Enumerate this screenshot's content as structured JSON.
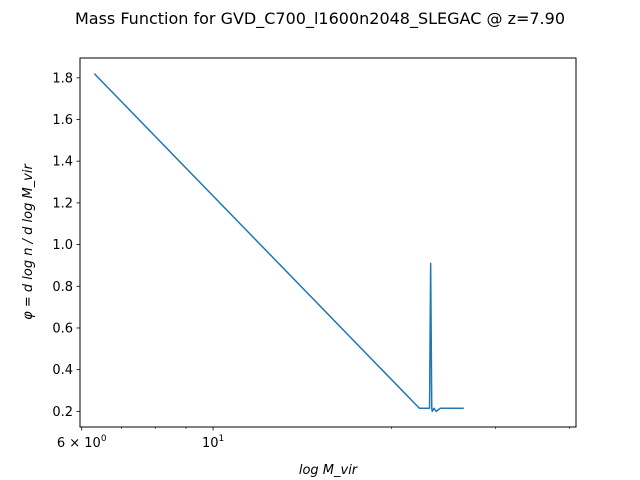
{
  "chart_data": {
    "type": "line",
    "title": "Mass Function for GVD_C700_l1600n2048_SLEGAC @ z=7.90",
    "xlabel": "log M_vir",
    "ylabel": "φ = d log n / d log M_vir",
    "xscale": "log",
    "xlim": [
      5.96,
      41.0
    ],
    "ylim": [
      0.125,
      1.895
    ],
    "xticks": [
      {
        "value": 6,
        "label": "6 × 10^0"
      },
      {
        "value": 10,
        "label": "10^1"
      }
    ],
    "x_minor_ticks": [
      7,
      8,
      9,
      20,
      30,
      40
    ],
    "yticks": [
      0.2,
      0.4,
      0.6,
      0.8,
      1.0,
      1.2,
      1.4,
      1.6,
      1.8
    ],
    "ytick_labels": [
      "0.2",
      "0.4",
      "0.6",
      "0.8",
      "1.0",
      "1.2",
      "1.4",
      "1.6",
      "1.8"
    ],
    "grid": false,
    "series": [
      {
        "color": "#1f77b4",
        "x": [
          6.3,
          22.3,
          23.2,
          23.3,
          23.4,
          23.45,
          23.6,
          23.8,
          24.2,
          24.7,
          25.3,
          26.5
        ],
        "y": [
          1.82,
          0.215,
          0.215,
          0.91,
          0.215,
          0.2,
          0.215,
          0.2,
          0.215,
          0.215,
          0.215,
          0.215
        ]
      }
    ]
  }
}
